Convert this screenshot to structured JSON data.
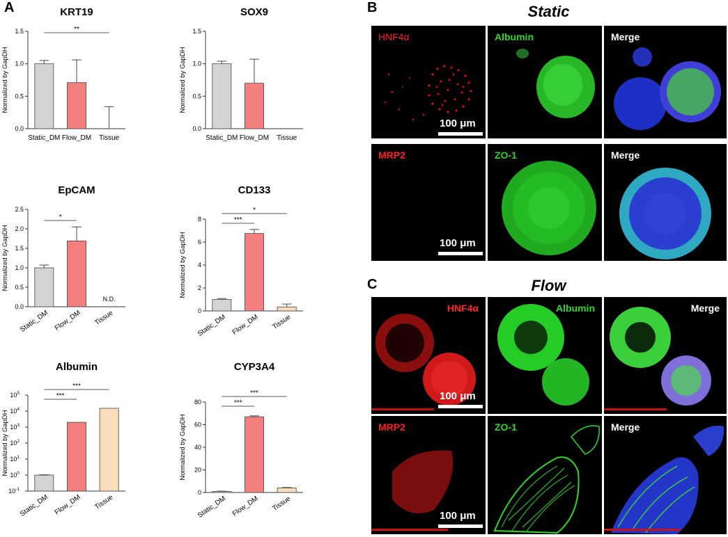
{
  "panels": {
    "a": "A",
    "b": "B",
    "c": "C"
  },
  "colors": {
    "static": "#d3d3d3",
    "flow": "#f47f7f",
    "tissue": "#f9dcb8",
    "red": "#ff2020",
    "green": "#2bd92b",
    "white": "#ffffff"
  },
  "chart_data": [
    {
      "type": "bar",
      "title": "KRT19",
      "ylabel": "Normalized by GapDH",
      "categories": [
        "Static_DM",
        "Flow_DM",
        "Tissue"
      ],
      "values": [
        1.0,
        0.71,
        0.0
      ],
      "errors": [
        0.05,
        0.35,
        0.34
      ],
      "ylim": [
        0,
        1.5
      ],
      "yticks": [
        "0.0",
        "0.5",
        "1.0",
        "1.5"
      ],
      "scale": "linear",
      "tick_rotation": 0,
      "significance": [
        {
          "from": 0,
          "to": 2,
          "label": "**"
        }
      ]
    },
    {
      "type": "bar",
      "title": "SOX9",
      "ylabel": "Normalized by GapDH",
      "categories": [
        "Static_DM",
        "Flow_DM",
        "Tissue"
      ],
      "values": [
        1.0,
        0.7,
        0.0
      ],
      "errors": [
        0.04,
        0.37,
        0.0
      ],
      "ylim": [
        0,
        1.5
      ],
      "yticks": [
        "0.0",
        "0.5",
        "1.0",
        "1.5"
      ],
      "scale": "linear",
      "tick_rotation": 0,
      "significance": []
    },
    {
      "type": "bar",
      "title": "EpCAM",
      "ylabel": "Normalized by GapDH",
      "categories": [
        "Static_DM",
        "Flow_DM",
        "Tissue"
      ],
      "values": [
        1.0,
        1.69,
        0.0
      ],
      "errors": [
        0.07,
        0.36,
        0.0
      ],
      "ylim": [
        0,
        2.5
      ],
      "yticks": [
        "0.0",
        "0.5",
        "1.0",
        "1.5",
        "2.0",
        "2.5"
      ],
      "scale": "linear",
      "tick_rotation": 35,
      "significance": [
        {
          "from": 0,
          "to": 1,
          "label": "*"
        }
      ],
      "annotations": [
        {
          "index": 2,
          "label": "N.D."
        }
      ]
    },
    {
      "type": "bar",
      "title": "CD133",
      "ylabel": "Normalized by GapDH",
      "categories": [
        "Static_DM",
        "Flow_DM",
        "Tissue"
      ],
      "values": [
        1.0,
        6.75,
        0.35
      ],
      "errors": [
        0.08,
        0.35,
        0.25
      ],
      "ylim": [
        0,
        8
      ],
      "yticks": [
        "0",
        "2",
        "4",
        "6",
        "8"
      ],
      "scale": "linear",
      "tick_rotation": 35,
      "significance": [
        {
          "from": 0,
          "to": 1,
          "label": "***"
        },
        {
          "from": 0,
          "to": 2,
          "label": "*"
        }
      ]
    },
    {
      "type": "bar",
      "title": "Albumin",
      "ylabel": "Normalized by GapDH",
      "categories": [
        "Static_DM",
        "Flow_DM",
        "Tissue"
      ],
      "values": [
        1.0,
        2000,
        15000
      ],
      "errors": [
        0.05,
        0,
        0
      ],
      "ylim": [
        0.1,
        100000
      ],
      "yticks": [
        "10",
        "10",
        "10",
        "10",
        "10",
        "10",
        "10"
      ],
      "ytick_exponents": [
        "-1",
        "0",
        "1",
        "2",
        "3",
        "4",
        "5"
      ],
      "scale": "log",
      "tick_rotation": 35,
      "significance": [
        {
          "from": 0,
          "to": 1,
          "label": "***"
        },
        {
          "from": 0,
          "to": 2,
          "label": "***"
        }
      ]
    },
    {
      "type": "bar",
      "title": "CYP3A4",
      "ylabel": "Normalized by GapDH",
      "categories": [
        "Static_DM",
        "Flow_DM",
        "Tissue"
      ],
      "values": [
        1.0,
        67.0,
        4.0
      ],
      "errors": [
        0.2,
        0.8,
        0.4
      ],
      "ylim": [
        0,
        80
      ],
      "yticks": [
        "0",
        "20",
        "40",
        "60",
        "80"
      ],
      "scale": "linear",
      "tick_rotation": 35,
      "significance": [
        {
          "from": 0,
          "to": 1,
          "label": "***"
        },
        {
          "from": 0,
          "to": 2,
          "label": "***"
        }
      ]
    }
  ],
  "static_section": {
    "title": "Static",
    "row1": [
      "HNF4α",
      "Albumin",
      "Merge"
    ],
    "row2": [
      "MRP2",
      "ZO-1",
      "Merge"
    ],
    "scale1": "100 μm",
    "scale2": "100 μm"
  },
  "flow_section": {
    "title": "Flow",
    "row1": [
      "HNF4α",
      "Albumin",
      "Merge"
    ],
    "row2": [
      "MRP2",
      "ZO-1",
      "Merge"
    ],
    "scale1": "100 μm",
    "scale2": "100 μm"
  }
}
